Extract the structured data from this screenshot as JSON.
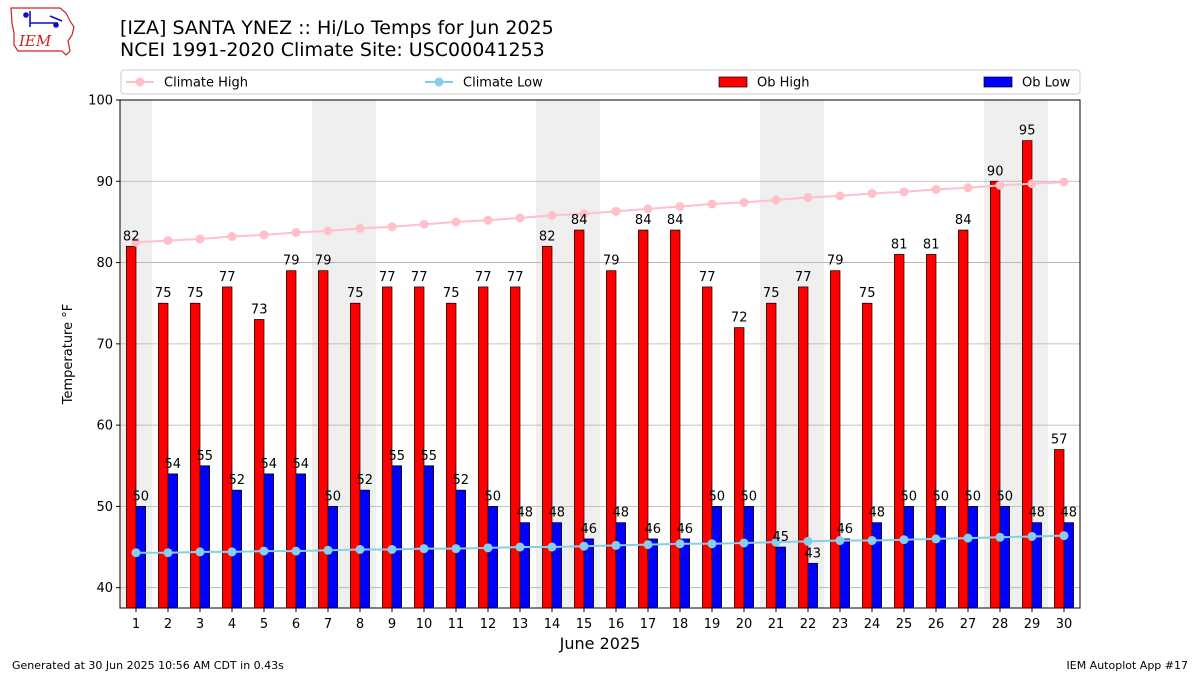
{
  "header": {
    "title_line1": "[IZA] SANTA YNEZ :: Hi/Lo Temps for Jun 2025",
    "title_line2": "NCEI 1991-2020 Climate Site: USC00041253",
    "logo_text": "IEM"
  },
  "footer": {
    "generated": "Generated at 30 Jun 2025 10:56 AM CDT in 0.43s",
    "app": "IEM Autoplot App #17"
  },
  "colors": {
    "ob_high": "#ff0000",
    "ob_low": "#0000ff",
    "climate_high": "#ffc0cb",
    "climate_low": "#87ceeb",
    "weekend_shade": "#efefef",
    "grid": "#b0b0b0"
  },
  "chart_data": {
    "type": "bar",
    "xlabel": "June 2025",
    "ylabel": "Temperature °F",
    "ylim": [
      37.5,
      100
    ],
    "yticks": [
      40,
      50,
      60,
      70,
      80,
      90,
      100
    ],
    "grid": "horizontal",
    "legend_placement": "top",
    "categories": [
      "1",
      "2",
      "3",
      "4",
      "5",
      "6",
      "7",
      "8",
      "9",
      "10",
      "11",
      "12",
      "13",
      "14",
      "15",
      "16",
      "17",
      "18",
      "19",
      "20",
      "21",
      "22",
      "23",
      "24",
      "25",
      "26",
      "27",
      "28",
      "29",
      "30"
    ],
    "shaded_days": [
      1,
      7,
      8,
      14,
      15,
      21,
      22,
      28,
      29
    ],
    "series": [
      {
        "name": "Climate High",
        "kind": "line",
        "values": [
          82.5,
          82.7,
          82.9,
          83.2,
          83.4,
          83.7,
          83.9,
          84.2,
          84.4,
          84.7,
          85.0,
          85.2,
          85.5,
          85.8,
          86.0,
          86.3,
          86.6,
          86.9,
          87.2,
          87.4,
          87.7,
          88.0,
          88.2,
          88.5,
          88.7,
          89.0,
          89.2,
          89.5,
          89.7,
          89.9
        ]
      },
      {
        "name": "Climate Low",
        "kind": "line",
        "values": [
          44.3,
          44.3,
          44.4,
          44.4,
          44.5,
          44.5,
          44.6,
          44.7,
          44.7,
          44.8,
          44.8,
          44.9,
          45.0,
          45.0,
          45.1,
          45.2,
          45.3,
          45.4,
          45.4,
          45.5,
          45.6,
          45.7,
          45.8,
          45.8,
          45.9,
          46.0,
          46.1,
          46.2,
          46.3,
          46.4
        ]
      },
      {
        "name": "Ob High",
        "kind": "bar",
        "values": [
          82,
          75,
          75,
          77,
          73,
          79,
          79,
          75,
          77,
          77,
          75,
          77,
          77,
          82,
          84,
          79,
          84,
          84,
          77,
          72,
          75,
          77,
          79,
          75,
          81,
          81,
          84,
          90,
          95,
          57
        ],
        "labels": [
          "82",
          "75",
          "75",
          "77",
          "73",
          "79",
          "79",
          "75",
          "77",
          "77",
          "75",
          "77",
          "77",
          "82",
          "84",
          "79",
          "84",
          "84",
          "77",
          "72",
          "75",
          "77",
          "79",
          "75",
          "81",
          "81",
          "84",
          "90",
          "95",
          "57"
        ]
      },
      {
        "name": "Ob Low",
        "kind": "bar",
        "values": [
          50,
          54,
          55,
          52,
          54,
          54,
          50,
          52,
          55,
          55,
          52,
          50,
          48,
          48,
          46,
          48,
          46,
          46,
          50,
          50,
          45,
          43,
          46,
          48,
          50,
          50,
          50,
          50,
          48,
          48
        ],
        "labels": [
          "50",
          "54",
          "55",
          "52",
          "54",
          "54",
          "50",
          "52",
          "55",
          "55",
          "52",
          "50",
          "48",
          "48",
          "46",
          "48",
          "46",
          "46",
          "50",
          "50",
          "45",
          "43",
          "46",
          "48",
          "50",
          "50",
          "50",
          "50",
          "48",
          "48"
        ]
      }
    ]
  }
}
